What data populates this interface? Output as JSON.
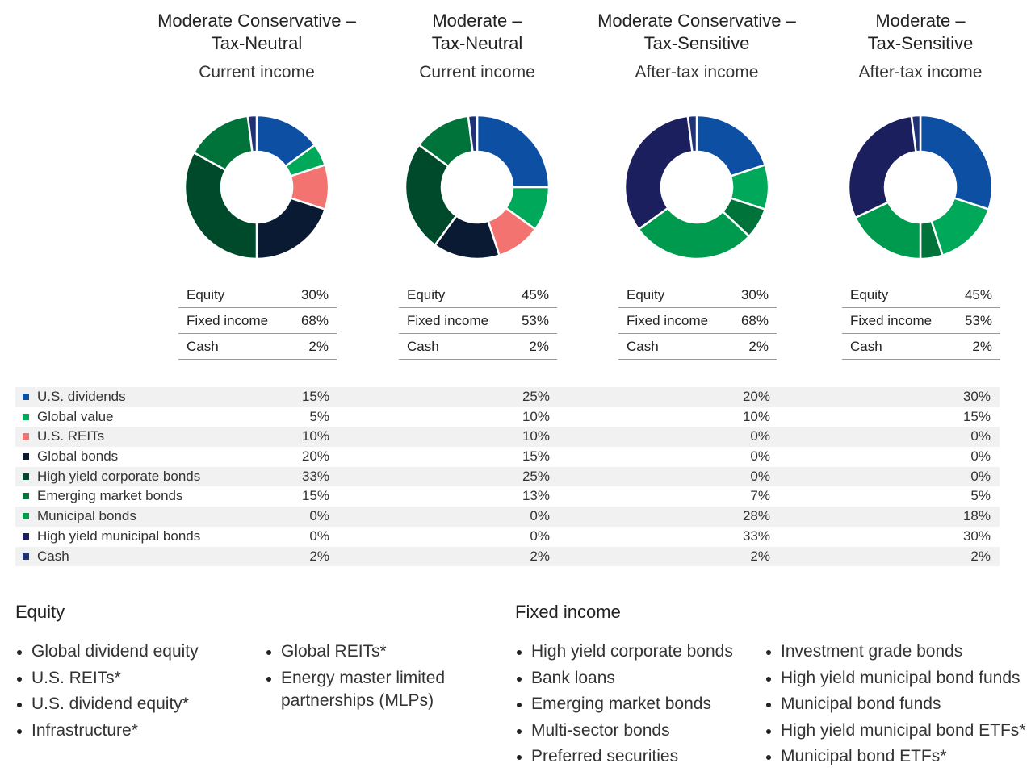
{
  "chart_data": {
    "type": "pie",
    "categories": [
      "U.S. dividends",
      "Global value",
      "U.S. REITs",
      "Global bonds",
      "High yield corporate bonds",
      "Emerging market bonds",
      "Municipal bonds",
      "High yield municipal bonds",
      "Cash"
    ],
    "colors": [
      "#0d4fa3",
      "#00a85a",
      "#f27370",
      "#0b1a33",
      "#004a2c",
      "#00733a",
      "#009a4e",
      "#1b1f5e",
      "#1f3278"
    ],
    "charts": [
      {
        "title": [
          "Moderate Conservative –",
          "Tax-Neutral"
        ],
        "subtitle": "Current income",
        "values": [
          15,
          5,
          10,
          20,
          33,
          15,
          0,
          0,
          2
        ],
        "allocation": {
          "Equity": "30%",
          "Fixed income": "68%",
          "Cash": "2%"
        }
      },
      {
        "title": [
          "Moderate –",
          "Tax-Neutral"
        ],
        "subtitle": "Current income",
        "values": [
          25,
          10,
          10,
          15,
          25,
          13,
          0,
          0,
          2
        ],
        "allocation": {
          "Equity": "45%",
          "Fixed income": "53%",
          "Cash": "2%"
        }
      },
      {
        "title": [
          "Moderate Conservative –",
          "Tax-Sensitive"
        ],
        "subtitle": "After-tax income",
        "values": [
          20,
          10,
          0,
          0,
          0,
          7,
          28,
          33,
          2
        ],
        "allocation": {
          "Equity": "30%",
          "Fixed income": "68%",
          "Cash": "2%"
        }
      },
      {
        "title": [
          "Moderate –",
          "Tax-Sensitive"
        ],
        "subtitle": "After-tax income",
        "values": [
          30,
          15,
          0,
          0,
          0,
          5,
          18,
          30,
          2
        ],
        "allocation": {
          "Equity": "45%",
          "Fixed income": "53%",
          "Cash": "2%"
        }
      }
    ]
  },
  "alloc_labels": [
    "Equity",
    "Fixed income",
    "Cash"
  ],
  "equity": {
    "heading": "Equity",
    "col1": [
      "Global dividend equity",
      "U.S. REITs*",
      "U.S. dividend equity*",
      "Infrastructure*"
    ],
    "col2": [
      "Global REITs*",
      "Energy master limited partnerships (MLPs)"
    ]
  },
  "fixed_income": {
    "heading": "Fixed income",
    "col1": [
      "High yield corporate bonds",
      "Bank loans",
      "Emerging market bonds",
      "Multi-sector bonds",
      "Preferred securities"
    ],
    "col2": [
      "Investment grade bonds",
      "High yield municipal bond funds",
      "Municipal bond funds",
      "High yield municipal bond ETFs*",
      "Municipal bond ETFs*"
    ]
  }
}
